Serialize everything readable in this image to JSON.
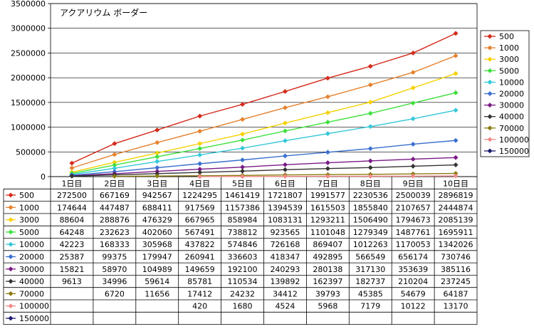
{
  "chart_data": {
    "type": "line",
    "title": "アクアリウム ボーダー",
    "xlabel": "",
    "ylabel": "",
    "categories": [
      "1日目",
      "2日目",
      "3日目",
      "4日目",
      "5日目",
      "6日目",
      "7日目",
      "8日目",
      "9日目",
      "10日目"
    ],
    "ylim": [
      0,
      3500000
    ],
    "yticks": [
      0,
      500000,
      1000000,
      1500000,
      2000000,
      2500000,
      3000000,
      3500000
    ],
    "ytick_labels": [
      "0",
      "500000",
      "1000000",
      "1500000",
      "2000000",
      "2500000",
      "3000000",
      "3500000"
    ],
    "grid": "horizontal",
    "legend_position": "right",
    "series": [
      {
        "name": "500",
        "color": "#d42a1a",
        "values": [
          272500,
          667169,
          942567,
          1224295,
          1461419,
          1721807,
          1991577,
          2230536,
          2500039,
          2896819
        ]
      },
      {
        "name": "1000",
        "color": "#e6822e",
        "values": [
          174644,
          447487,
          688411,
          917569,
          1157386,
          1394539,
          1615503,
          1855840,
          2107657,
          2444874
        ]
      },
      {
        "name": "3000",
        "color": "#f5d000",
        "values": [
          88604,
          288876,
          476329,
          667965,
          858984,
          1083131,
          1293211,
          1506490,
          1794673,
          2085139
        ]
      },
      {
        "name": "5000",
        "color": "#3fe03f",
        "values": [
          64248,
          232623,
          402060,
          567491,
          738812,
          923565,
          1101048,
          1279349,
          1487761,
          1695911
        ]
      },
      {
        "name": "10000",
        "color": "#34c8d8",
        "values": [
          42223,
          168333,
          305968,
          437822,
          574846,
          726168,
          869407,
          1012263,
          1170053,
          1342026
        ]
      },
      {
        "name": "20000",
        "color": "#3a6fce",
        "values": [
          25387,
          99375,
          179947,
          260941,
          336603,
          418347,
          492895,
          566549,
          656174,
          730746
        ]
      },
      {
        "name": "30000",
        "color": "#7a1a86",
        "values": [
          15821,
          58970,
          104989,
          149659,
          192100,
          240293,
          280138,
          317130,
          353639,
          385116
        ]
      },
      {
        "name": "40000",
        "color": "#333333",
        "values": [
          9613,
          34996,
          59614,
          85781,
          110534,
          139892,
          162397,
          182737,
          210204,
          237245
        ]
      },
      {
        "name": "70000",
        "color": "#8a7a10",
        "values": [
          null,
          6720,
          11656,
          17412,
          24232,
          34412,
          39793,
          45385,
          54679,
          64187
        ]
      },
      {
        "name": "100000",
        "color": "#f08a8a",
        "values": [
          null,
          null,
          null,
          420,
          1680,
          4524,
          5968,
          7179,
          10122,
          13170
        ]
      },
      {
        "name": "150000",
        "color": "#1a1a6e",
        "values": [
          null,
          null,
          null,
          null,
          null,
          null,
          null,
          null,
          null,
          null
        ]
      }
    ],
    "table_rows": [
      [
        "272500",
        "667169",
        "942567",
        "1224295",
        "1461419",
        "1721807",
        "1991577",
        "2230536",
        "2500039",
        "2896819"
      ],
      [
        "174644",
        "447487",
        "688411",
        "917569",
        "1157386",
        "1394539",
        "1615503",
        "1855840",
        "2107657",
        "2444874"
      ],
      [
        "88604",
        "288876",
        "476329",
        "667965",
        "858984",
        "1083131",
        "1293211",
        "1506490",
        "1794673",
        "2085139"
      ],
      [
        "64248",
        "232623",
        "402060",
        "567491",
        "738812",
        "923565",
        "1101048",
        "1279349",
        "1487761",
        "1695911"
      ],
      [
        "42223",
        "168333",
        "305968",
        "437822",
        "574846",
        "726168",
        "869407",
        "1012263",
        "1170053",
        "1342026"
      ],
      [
        "25387",
        "99375",
        "179947",
        "260941",
        "336603",
        "418347",
        "492895",
        "566549",
        "656174",
        "730746"
      ],
      [
        "15821",
        "58970",
        "104989",
        "149659",
        "192100",
        "240293",
        "280138",
        "317130",
        "353639",
        "385116"
      ],
      [
        "9613",
        "34996",
        "59614",
        "85781",
        "110534",
        "139892",
        "162397",
        "182737",
        "210204",
        "237245"
      ],
      [
        "",
        "6720",
        "11656",
        "17412",
        "24232",
        "34412",
        "39793",
        "45385",
        "54679",
        "64187"
      ],
      [
        "",
        "",
        "",
        "420",
        "1680",
        "4524",
        "5968",
        "7179",
        "10122",
        "13170"
      ],
      [
        "",
        "",
        "",
        "",
        "",
        "",
        "",
        "",
        "",
        ""
      ]
    ]
  }
}
